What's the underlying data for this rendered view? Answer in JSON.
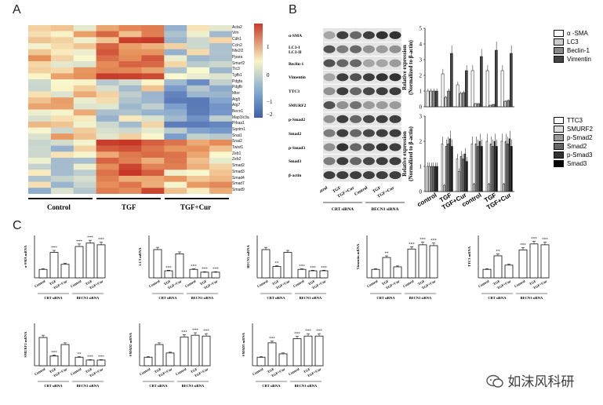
{
  "panels": {
    "a": "A",
    "b": "B",
    "c": "C"
  },
  "heatmap": {
    "genes": [
      "Acta2",
      "Vim",
      "Cdh1",
      "Ccln2",
      "Nfe2l2",
      "Ppara",
      "Smurf2",
      "Ttc3",
      "Tgfb1",
      "Pdgfa",
      "Pdgfb",
      "Mtor",
      "Atg5",
      "Atg7",
      "Becn1",
      "Map1lc3a",
      "Prkaa1",
      "Sqstm1",
      "Snai1",
      "Snai2",
      "Twist1",
      "Zeb1",
      "Zeb2",
      "Smad2",
      "Smad3",
      "Smad4",
      "Smad7",
      "Smad9"
    ],
    "groups": [
      "Control",
      "TGF",
      "TGF+Cur"
    ],
    "scale": {
      "max": "1",
      "mid": "0",
      "neg1": "−1",
      "neg2": "−2"
    }
  },
  "blot": {
    "proteins": [
      "α-SMA",
      "LC3-I\nLC3-II",
      "Beclin-1",
      "Vimentin",
      "TTC3",
      "SMURF2",
      "p-Smad2",
      "Smad2",
      "p-Smad3",
      "Smad3",
      "β-actin"
    ],
    "lanes": [
      "Control",
      "TGF",
      "TGF+Cur",
      "Control",
      "TGF",
      "TGF+Cur"
    ],
    "sirna": [
      "CRT siRNA",
      "BECN1 siRNA"
    ]
  },
  "bar_b": {
    "ylabel": "Relative expression",
    "ylabel2": "(Normalized to β-actin)",
    "top_legend": [
      "α -SMA",
      "LC3",
      "Beclin-1",
      "Vimentin"
    ],
    "bottom_legend": [
      "TTC3",
      "SMURF2",
      "p-Smad2",
      "Smad2",
      "p-Smad3",
      "Smad3"
    ],
    "xlabels": [
      "control",
      "TGF",
      "TGF+Cur",
      "control",
      "TGF",
      "TGF+Cur"
    ]
  },
  "panel_c": {
    "xlabels": [
      "Control",
      "TGF",
      "TGF+Cur",
      "Control",
      "TGF",
      "TGF+Cur"
    ],
    "sirna": [
      "CRT siRNA",
      "BECN1 siRNA"
    ]
  },
  "chart_data": [
    {
      "type": "bar",
      "title": "",
      "ylabel": "Relative expression (Normalized to β-actin)",
      "ylim": [
        0,
        5
      ],
      "categories": [
        "control",
        "TGF",
        "TGF+Cur",
        "control",
        "TGF",
        "TGF+Cur"
      ],
      "series": [
        {
          "name": "α -SMA",
          "values": [
            1.0,
            2.1,
            1.4,
            2.3,
            2.3,
            2.3
          ]
        },
        {
          "name": "LC3",
          "values": [
            1.0,
            0.6,
            0.85,
            0.2,
            0.1,
            0.35
          ]
        },
        {
          "name": "Beclin-1",
          "values": [
            1.0,
            1.0,
            0.9,
            0.2,
            0.15,
            0.4
          ]
        },
        {
          "name": "Vimentin",
          "values": [
            1.0,
            3.4,
            2.3,
            3.2,
            3.6,
            3.4
          ]
        }
      ]
    },
    {
      "type": "bar",
      "title": "",
      "ylabel": "Relative expression (Normalized to β-actin)",
      "ylim": [
        0,
        3
      ],
      "categories": [
        "control",
        "TGF",
        "TGF+Cur",
        "control",
        "TGF",
        "TGF+Cur"
      ],
      "series": [
        {
          "name": "TTC3",
          "values": [
            1.0,
            1.9,
            1.3,
            1.9,
            2.0,
            2.0
          ]
        },
        {
          "name": "SMURF2",
          "values": [
            1.0,
            0.25,
            0.8,
            0.3,
            0.3,
            0.3
          ]
        },
        {
          "name": "p-Smad2",
          "values": [
            1.0,
            1.8,
            1.4,
            1.9,
            1.9,
            2.0
          ]
        },
        {
          "name": "Smad2",
          "values": [
            1.0,
            1.9,
            1.3,
            1.8,
            1.8,
            1.9
          ]
        },
        {
          "name": "p-Smad3",
          "values": [
            1.0,
            2.1,
            1.5,
            2.0,
            2.0,
            2.1
          ]
        },
        {
          "name": "Smad3",
          "values": [
            1.0,
            1.8,
            1.2,
            1.8,
            1.8,
            1.8
          ]
        }
      ]
    },
    {
      "type": "bar",
      "title": "α-SMA mRNA",
      "categories": [
        "Control",
        "TGF",
        "TGF+Cur",
        "Control",
        "TGF",
        "TGF+Cur"
      ],
      "values": [
        1.0,
        3.0,
        1.6,
        3.7,
        4.1,
        3.9
      ],
      "ylim": [
        0,
        5
      ]
    },
    {
      "type": "bar",
      "title": "LC3 mRNA",
      "categories": [
        "Control",
        "TGF",
        "TGF+Cur",
        "Control",
        "TGF",
        "TGF+Cur"
      ],
      "values": [
        1.0,
        0.25,
        0.85,
        0.3,
        0.2,
        0.2
      ],
      "ylim": [
        0,
        1.5
      ]
    },
    {
      "type": "bar",
      "title": "BECN1 mRNA",
      "categories": [
        "Control",
        "TGF",
        "TGF+Cur",
        "Control",
        "TGF",
        "TGF+Cur"
      ],
      "values": [
        1.0,
        0.4,
        0.9,
        0.3,
        0.25,
        0.25
      ],
      "ylim": [
        0,
        1.5
      ]
    },
    {
      "type": "bar",
      "title": "Vimentin mRNA",
      "categories": [
        "Control",
        "TGF",
        "TGF+Cur",
        "Control",
        "TGF",
        "TGF+Cur"
      ],
      "values": [
        1.0,
        2.4,
        1.3,
        3.4,
        3.9,
        3.8
      ],
      "ylim": [
        0,
        5
      ]
    },
    {
      "type": "bar",
      "title": "TTC3 mRNA",
      "categories": [
        "Control",
        "TGF",
        "TGF+Cur",
        "Control",
        "TGF",
        "TGF+Cur"
      ],
      "values": [
        1.0,
        2.6,
        1.5,
        3.3,
        4.0,
        3.9
      ],
      "ylim": [
        0,
        5
      ]
    },
    {
      "type": "bar",
      "title": "SMURF2 mRNA",
      "categories": [
        "Control",
        "TGF",
        "TGF+Cur",
        "Control",
        "TGF",
        "TGF+Cur"
      ],
      "values": [
        1.0,
        0.35,
        0.75,
        0.3,
        0.2,
        0.2
      ],
      "ylim": [
        0,
        1.5
      ]
    },
    {
      "type": "bar",
      "title": "SMAD2 mRNA",
      "categories": [
        "Control",
        "TGF",
        "TGF+Cur",
        "Control",
        "TGF",
        "TGF+Cur"
      ],
      "values": [
        1.0,
        2.5,
        1.5,
        3.4,
        3.6,
        3.5
      ],
      "ylim": [
        0,
        5
      ]
    },
    {
      "type": "bar",
      "title": "SMAD3 mRNA",
      "categories": [
        "Control",
        "TGF",
        "TGF+Cur",
        "Control",
        "TGF",
        "TGF+Cur"
      ],
      "values": [
        1.0,
        2.7,
        1.4,
        3.2,
        3.5,
        3.5
      ],
      "ylim": [
        0,
        5
      ]
    }
  ],
  "small_charts": {
    "c1": {
      "title": "α-SMA mRNA",
      "sig": [
        "",
        "***",
        "",
        "***",
        "***",
        "***"
      ]
    },
    "c2": {
      "title": "LC3 mRNA",
      "sig": [
        "",
        "***",
        "",
        "***",
        "***",
        "***"
      ]
    },
    "c3": {
      "title": "BECN1 mRNA",
      "sig": [
        "",
        "**",
        "",
        "***",
        "***",
        "***"
      ]
    },
    "c4": {
      "title": "Vimentin mRNA",
      "sig": [
        "",
        "**",
        "",
        "***",
        "***",
        "***"
      ]
    },
    "c5": {
      "title": "TTC3 mRNA",
      "sig": [
        "",
        "**",
        "",
        "***",
        "***",
        "***"
      ]
    },
    "c6": {
      "title": "SMURF2 mRNA",
      "sig": [
        "",
        "***",
        "",
        "**",
        "***",
        "***"
      ]
    },
    "c7": {
      "title": "SMAD2 mRNA",
      "sig": [
        "",
        "",
        "",
        "***",
        "***",
        "***"
      ]
    },
    "c8": {
      "title": "SMAD3 mRNA",
      "sig": [
        "",
        "***",
        "",
        "***",
        "***",
        "***"
      ]
    }
  },
  "watermark": {
    "icon": "wechat-icon",
    "text": "如沫风科研"
  }
}
